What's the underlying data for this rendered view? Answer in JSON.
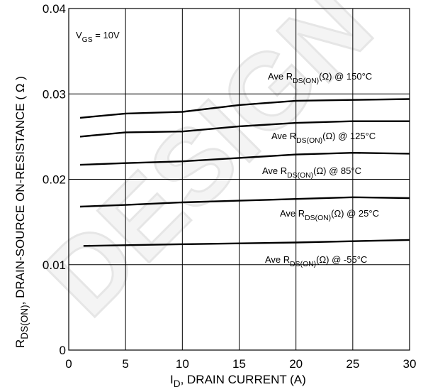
{
  "chart_data": {
    "type": "line",
    "watermark": "DESIGN",
    "x_label_parts": [
      "I",
      "D",
      ", DRAIN CURRENT (A)"
    ],
    "y_label_parts": [
      "R",
      "DS(ON)",
      ", DRAIN-SOURCE ON-RESISTANCE ( Ω )"
    ],
    "annotation_parts": [
      "V",
      "GS",
      " = 10V"
    ],
    "xlim": [
      0,
      30
    ],
    "xticks": [
      0,
      5,
      10,
      15,
      20,
      25,
      30
    ],
    "ylim": [
      0,
      0.04
    ],
    "yticks": [
      0,
      0.01,
      0.02,
      0.03,
      0.04
    ],
    "grid": true,
    "series": [
      {
        "name_parts": [
          "Ave R",
          "DS(ON)",
          "(Ω) @ 150°C"
        ],
        "color": "#000000",
        "x": [
          1,
          5,
          10,
          15,
          20,
          25,
          30
        ],
        "values": [
          0.0272,
          0.0277,
          0.0279,
          0.0287,
          0.0292,
          0.0293,
          0.0294
        ]
      },
      {
        "name_parts": [
          "Ave R",
          "DS(ON)",
          "(Ω) @ 125°C"
        ],
        "color": "#000000",
        "x": [
          1,
          5,
          10,
          15,
          20,
          25,
          30
        ],
        "values": [
          0.025,
          0.0255,
          0.0256,
          0.0262,
          0.0266,
          0.0268,
          0.0268
        ]
      },
      {
        "name_parts": [
          "Ave R",
          "DS(ON)",
          "(Ω) @ 85°C"
        ],
        "color": "#000000",
        "x": [
          1,
          5,
          10,
          15,
          20,
          25,
          30
        ],
        "values": [
          0.0217,
          0.0219,
          0.0221,
          0.0225,
          0.0229,
          0.0231,
          0.023
        ]
      },
      {
        "name_parts": [
          "Ave R",
          "DS(ON)",
          "(Ω)  @ 25°C"
        ],
        "color": "#000000",
        "x": [
          1,
          5,
          10,
          15,
          20,
          25,
          30
        ],
        "values": [
          0.0168,
          0.017,
          0.0173,
          0.0175,
          0.0177,
          0.0179,
          0.0178
        ]
      },
      {
        "name_parts": [
          "Ave R",
          "DS(ON)",
          "(Ω)  @ -55°C"
        ],
        "color": "#000000",
        "x": [
          1.3,
          10,
          20,
          30
        ],
        "values": [
          0.0122,
          0.0124,
          0.0126,
          0.0129
        ]
      }
    ]
  }
}
